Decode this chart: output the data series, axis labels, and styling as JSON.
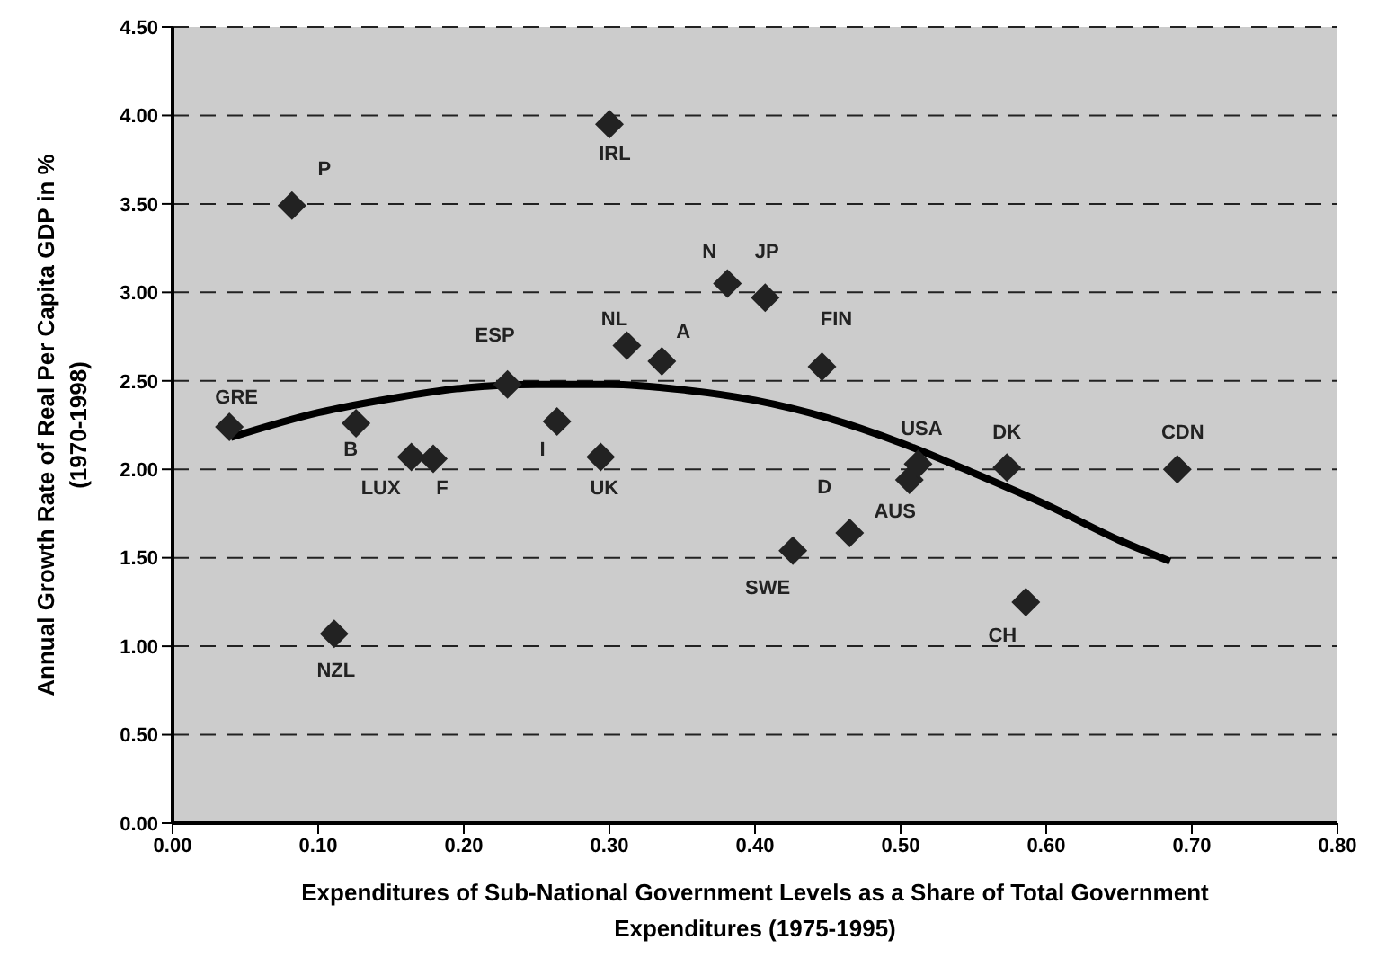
{
  "chart_data": {
    "type": "scatter",
    "xlabel": "Expenditures of Sub-National Government Levels as a Share of Total Government Expenditures (1975-1995)",
    "ylabel": "Annual Growth Rate of Real Per Capita GDP in % (1970-1998)",
    "xlim": [
      0,
      0.8
    ],
    "xticks": [
      {
        "value": 0,
        "label": "0.00"
      },
      {
        "value": 0.1,
        "label": "0.10"
      },
      {
        "value": 0.2,
        "label": "0.20"
      },
      {
        "value": 0.3,
        "label": "0.30"
      },
      {
        "value": 0.4,
        "label": "0.40"
      },
      {
        "value": 0.5,
        "label": "0.50"
      },
      {
        "value": 0.6,
        "label": "0.60"
      },
      {
        "value": 0.7,
        "label": "0.70"
      },
      {
        "value": 0.8,
        "label": "0.80"
      }
    ],
    "ylim": [
      0,
      4.5
    ],
    "yticks": [
      {
        "value": 0,
        "label": "0.00"
      },
      {
        "value": 0.5,
        "label": "0.50"
      },
      {
        "value": 1,
        "label": "1.00"
      },
      {
        "value": 1.5,
        "label": "1.50"
      },
      {
        "value": 2,
        "label": "2.00"
      },
      {
        "value": 2.5,
        "label": "2.50"
      },
      {
        "value": 3,
        "label": "3.00"
      },
      {
        "value": 3.5,
        "label": "3.50"
      },
      {
        "value": 4,
        "label": "4.00"
      },
      {
        "value": 4.5,
        "label": "4.50"
      }
    ],
    "grid": "y",
    "series": [
      {
        "marker": "diamond",
        "color": "#222222",
        "x": [
          0.039,
          0.082,
          0.3,
          0.126,
          0.164,
          0.179,
          0.23,
          0.264,
          0.294,
          0.312,
          0.336,
          0.381,
          0.111,
          0.407,
          0.446,
          0.426,
          0.465,
          0.506,
          0.512,
          0.573,
          0.586,
          0.69
        ],
        "values": [
          2.24,
          3.49,
          3.95,
          2.26,
          2.07,
          2.06,
          2.48,
          2.27,
          2.07,
          2.7,
          2.61,
          3.05,
          1.07,
          2.97,
          2.58,
          1.54,
          1.64,
          1.94,
          2.03,
          2.01,
          1.25,
          2.0
        ],
        "value_labels": [
          "GRE",
          "P",
          "IRL",
          "B",
          "LUX",
          "F",
          "ESP",
          "I",
          "UK",
          "NL",
          "A",
          "N",
          "NZL",
          "JP",
          "FIN",
          "SWE",
          "D",
          "AUS",
          "USA",
          "DK",
          "CH",
          "CDN"
        ]
      },
      {
        "type": "line",
        "color": "#000000",
        "x": [
          0.04,
          0.1,
          0.15,
          0.2,
          0.25,
          0.3,
          0.35,
          0.4,
          0.45,
          0.5,
          0.55,
          0.6,
          0.65,
          0.685
        ],
        "values": [
          2.18,
          2.32,
          2.4,
          2.46,
          2.48,
          2.48,
          2.45,
          2.39,
          2.29,
          2.15,
          1.98,
          1.8,
          1.6,
          1.48
        ]
      }
    ]
  }
}
